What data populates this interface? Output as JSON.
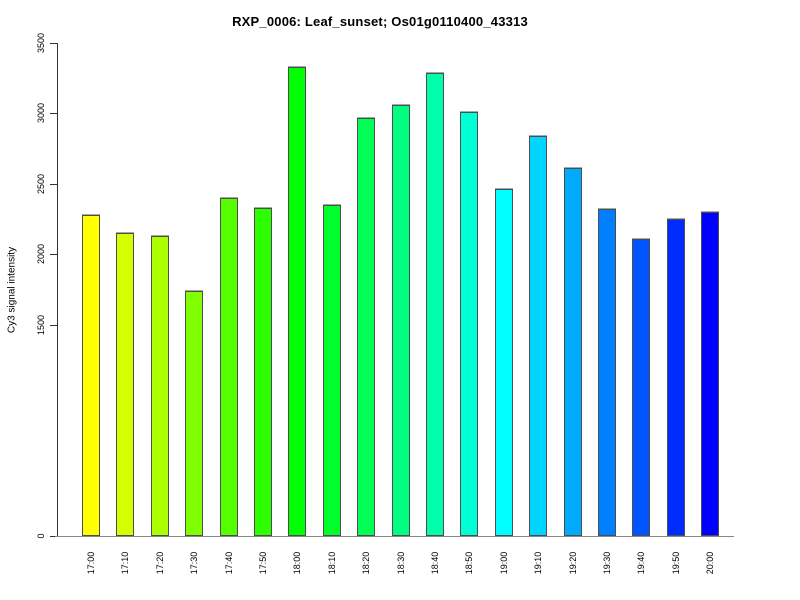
{
  "title": "RXP_0006: Leaf_sunset; Os01g0110400_43313",
  "chart_data": {
    "type": "bar",
    "title": "RXP_0006: Leaf_sunset; Os01g0110400_43313",
    "xlabel": "",
    "ylabel": "Cy3 signal intensity",
    "ylim": [
      0,
      3500
    ],
    "yticks": [
      0,
      1500,
      2000,
      2500,
      3000,
      3500
    ],
    "grid": false,
    "legend": null,
    "categories": [
      "17:00",
      "17:10",
      "17:20",
      "17:30",
      "17:40",
      "17:50",
      "18:00",
      "18:10",
      "18:20",
      "18:30",
      "18:40",
      "18:50",
      "19:00",
      "19:10",
      "19:20",
      "19:30",
      "19:40",
      "19:50",
      "20:00"
    ],
    "values": [
      2280,
      2150,
      2130,
      1740,
      2400,
      2330,
      3330,
      2350,
      2970,
      3060,
      3290,
      3010,
      2460,
      2840,
      2610,
      2320,
      2110,
      2250,
      2300
    ],
    "bar_colors": [
      "#FFFF00",
      "#D4FF00",
      "#AAFF00",
      "#80FF00",
      "#55FF00",
      "#2BFF00",
      "#00FF00",
      "#00FF2B",
      "#00FF55",
      "#00FF80",
      "#00FFAA",
      "#00FFD4",
      "#00FFFF",
      "#00D4FF",
      "#00AAFF",
      "#0080FF",
      "#0055FF",
      "#002BFF",
      "#0000FF"
    ]
  },
  "colors": {
    "background": "#FFFFFF",
    "axis": "#333333",
    "baseline": "#888888",
    "bar_border": "#4D4D4D",
    "text": "#000000"
  }
}
